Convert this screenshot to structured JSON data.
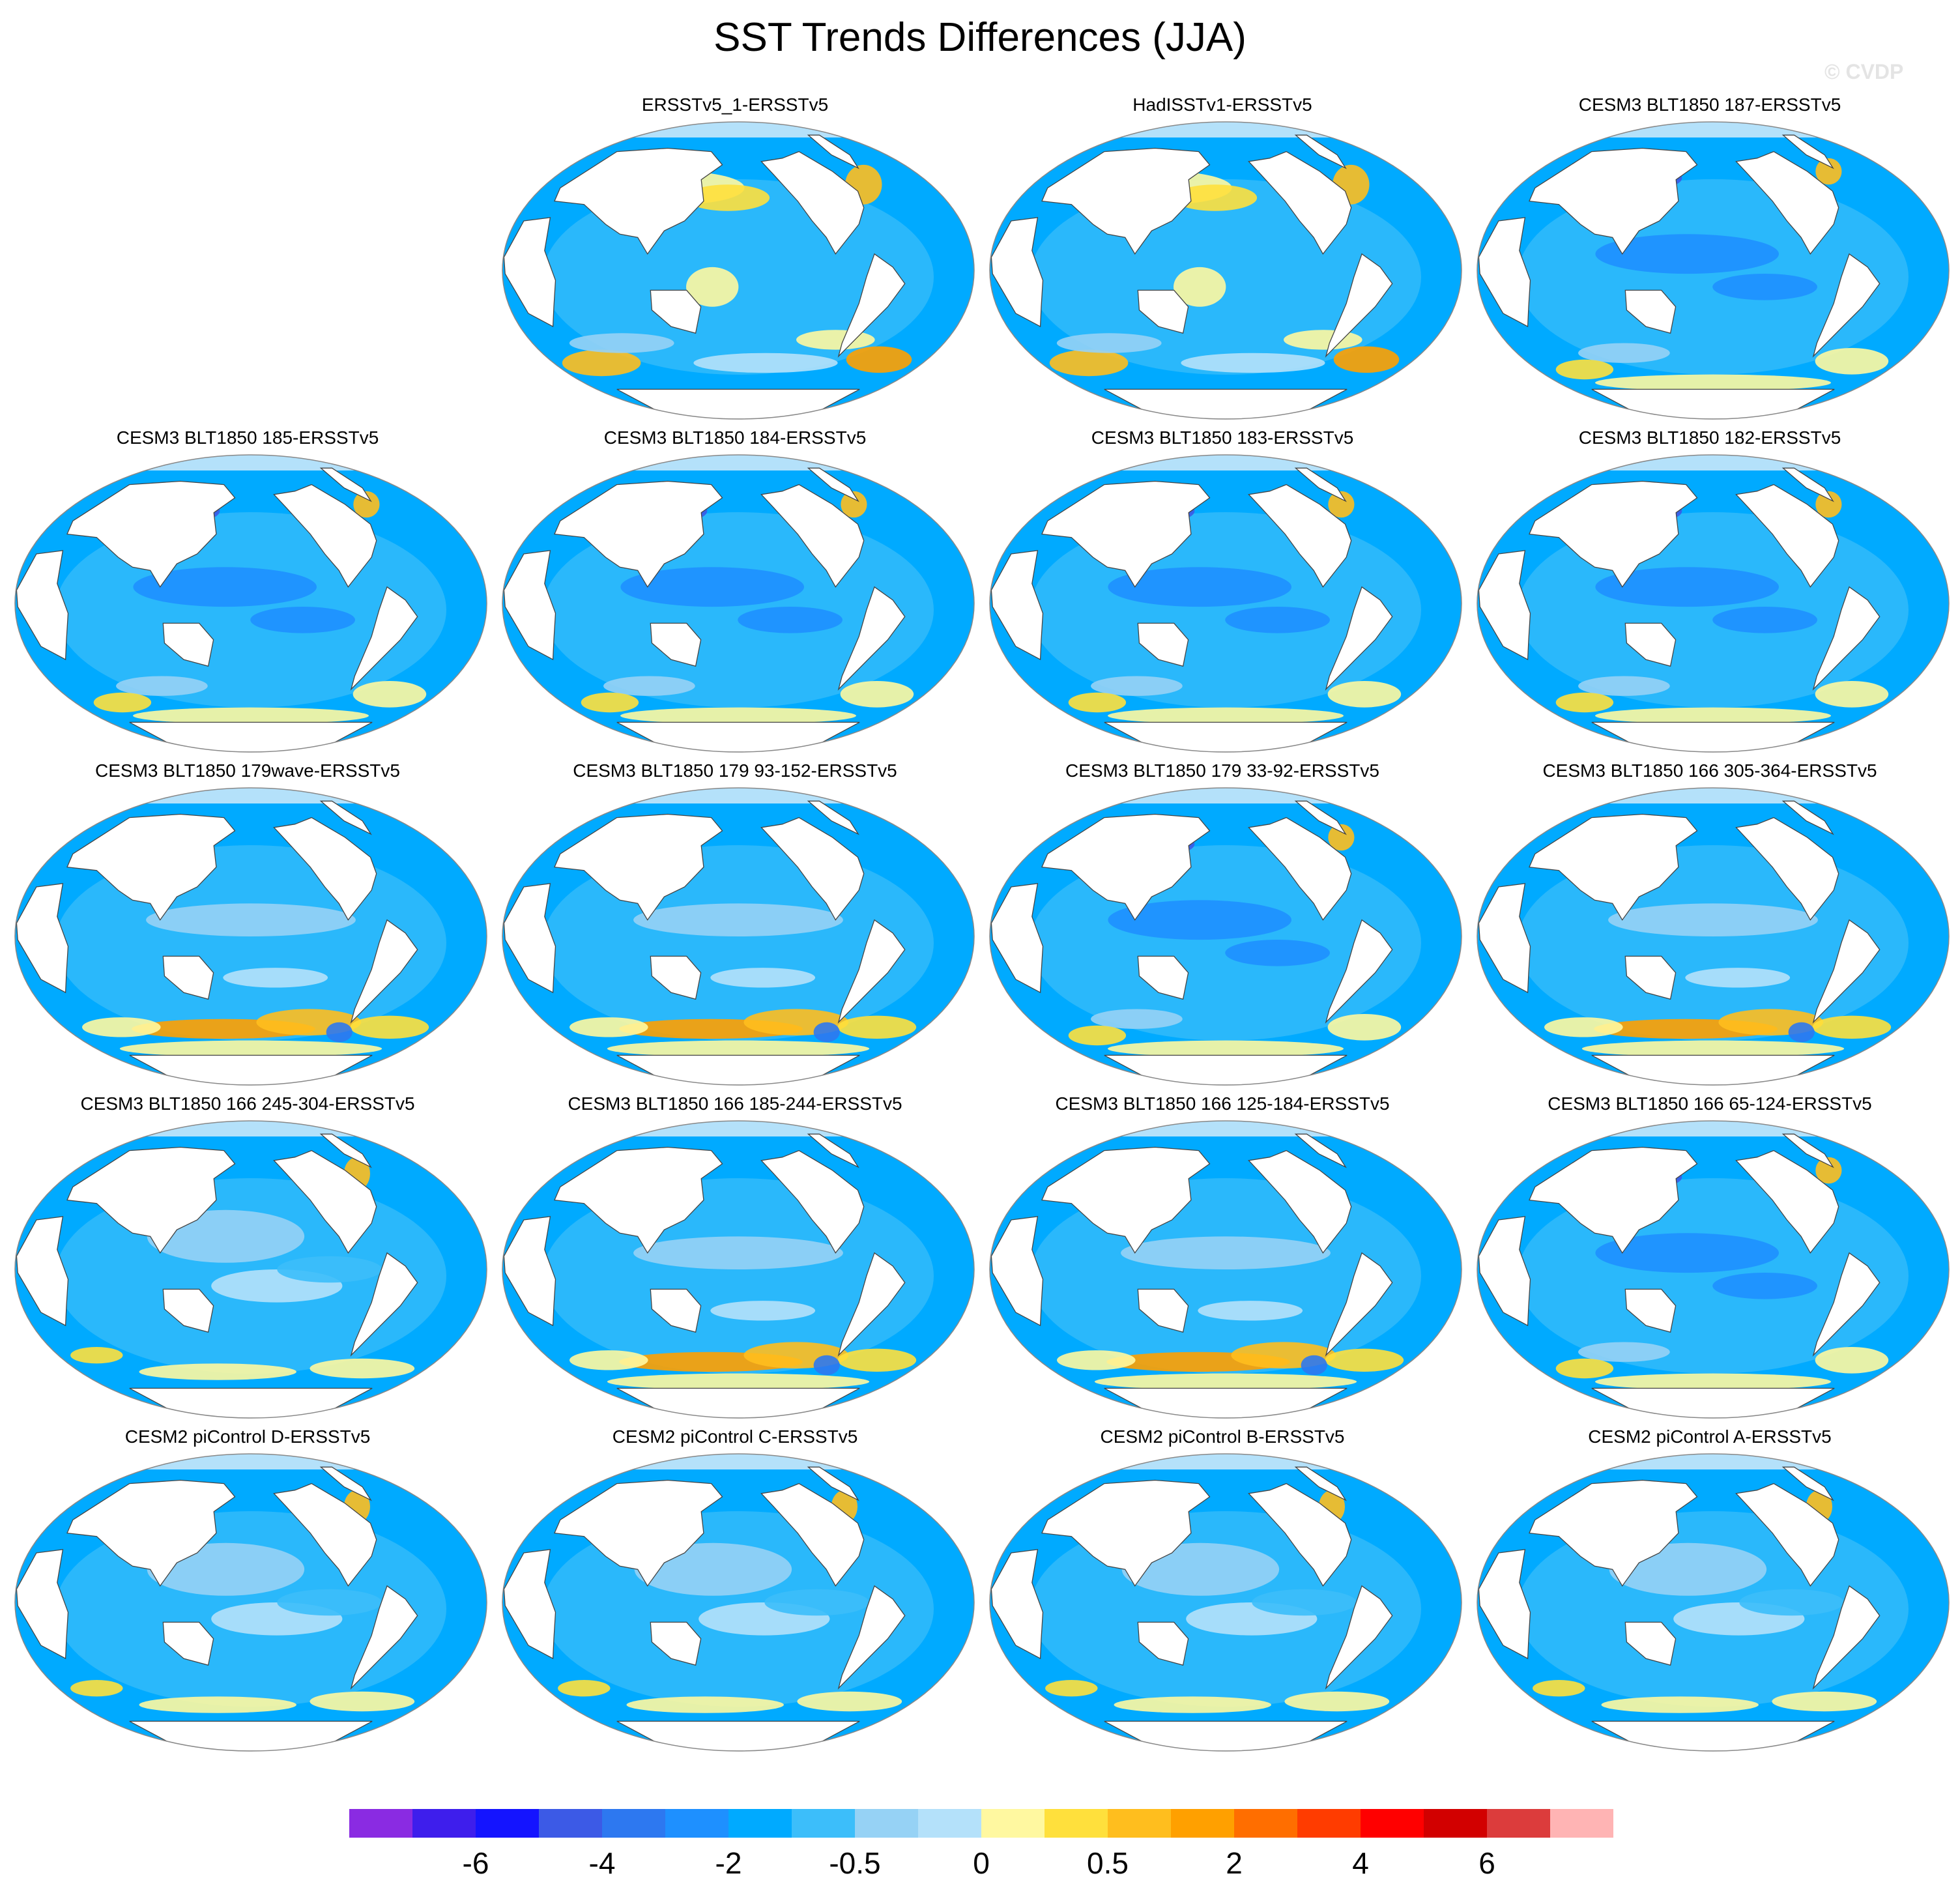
{
  "title": "SST Trends Differences (JJA)",
  "watermark": "© CVDP",
  "panels": [
    {
      "title": "ERSSTv5_1-ERSSTv5",
      "style": "warmN"
    },
    {
      "title": "HadISSTv1-ERSSTv5",
      "style": "warmN"
    },
    {
      "title": "CESM3 BLT1850 187-ERSSTv5",
      "style": "cool"
    },
    {
      "title": "CESM3 BLT1850 185-ERSSTv5",
      "style": "cool"
    },
    {
      "title": "CESM3 BLT1850 184-ERSSTv5",
      "style": "cool"
    },
    {
      "title": "CESM3 BLT1850 183-ERSSTv5",
      "style": "cool"
    },
    {
      "title": "CESM3 BLT1850 182-ERSSTv5",
      "style": "cool"
    },
    {
      "title": "CESM3 BLT1850 179wave-ERSSTv5",
      "style": "south"
    },
    {
      "title": "CESM3 BLT1850 179 93-152-ERSSTv5",
      "style": "south"
    },
    {
      "title": "CESM3 BLT1850 179 33-92-ERSSTv5",
      "style": "cool"
    },
    {
      "title": "CESM3 BLT1850 166 305-364-ERSSTv5",
      "style": "south"
    },
    {
      "title": "CESM3 BLT1850 166 245-304-ERSSTv5",
      "style": "mild"
    },
    {
      "title": "CESM3 BLT1850 166 185-244-ERSSTv5",
      "style": "south"
    },
    {
      "title": "CESM3 BLT1850 166 125-184-ERSSTv5",
      "style": "south"
    },
    {
      "title": "CESM3 BLT1850 166 65-124-ERSSTv5",
      "style": "cool"
    },
    {
      "title": "CESM2 piControl D-ERSSTv5",
      "style": "mild"
    },
    {
      "title": "CESM2 piControl C-ERSSTv5",
      "style": "mild"
    },
    {
      "title": "CESM2 piControl B-ERSSTv5",
      "style": "mild"
    },
    {
      "title": "CESM2 piControl A-ERSSTv5",
      "style": "mild"
    }
  ],
  "colorbar": {
    "colors": [
      "#8a2be2",
      "#3e1eec",
      "#1414ff",
      "#3c5ae6",
      "#2d78f0",
      "#1e90ff",
      "#00aaff",
      "#3cbefa",
      "#96d2f5",
      "#b4e1fa",
      "#fff8a0",
      "#ffe03c",
      "#ffbe1e",
      "#ffa000",
      "#ff6e00",
      "#ff3c00",
      "#ff0000",
      "#d20000",
      "#dc3c3c",
      "#ffb4b4"
    ],
    "labels": [
      "-6",
      "-4",
      "-2",
      "-0.5",
      "0",
      "0.5",
      "2",
      "4",
      "6"
    ]
  }
}
